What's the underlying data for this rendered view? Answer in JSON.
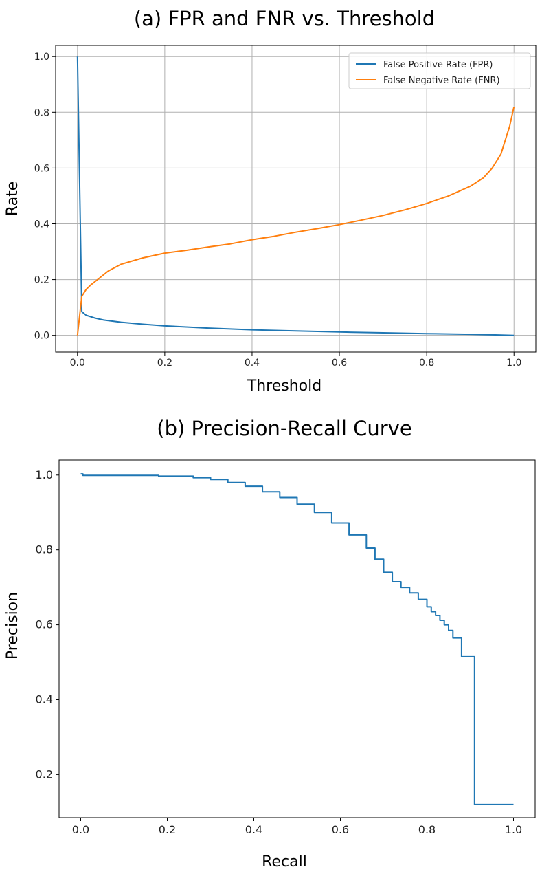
{
  "chart_data": [
    {
      "type": "line",
      "title": "(a) FPR and FNR vs. Threshold",
      "xlabel": "Threshold",
      "ylabel": "Rate",
      "xlim": [
        -0.05,
        1.05
      ],
      "ylim": [
        -0.06,
        1.04
      ],
      "xticks": [
        0.0,
        0.2,
        0.4,
        0.6,
        0.8,
        1.0
      ],
      "xtick_labels": [
        "0.0",
        "0.2",
        "0.4",
        "0.6",
        "0.8",
        "1.0"
      ],
      "yticks": [
        0.0,
        0.2,
        0.4,
        0.6,
        0.8,
        1.0
      ],
      "ytick_labels": [
        "0.0",
        "0.2",
        "0.4",
        "0.6",
        "0.8",
        "1.0"
      ],
      "grid": true,
      "legend_position": "top-right",
      "series": [
        {
          "name": "False Positive Rate (FPR)",
          "color": "#1f77b4",
          "x": [
            0.0,
            0.01,
            0.02,
            0.04,
            0.06,
            0.1,
            0.15,
            0.2,
            0.3,
            0.4,
            0.5,
            0.6,
            0.7,
            0.8,
            0.9,
            0.95,
            1.0
          ],
          "y": [
            1.0,
            0.085,
            0.072,
            0.062,
            0.055,
            0.047,
            0.04,
            0.034,
            0.026,
            0.02,
            0.016,
            0.012,
            0.009,
            0.006,
            0.004,
            0.002,
            0.0
          ]
        },
        {
          "name": "False Negative Rate (FNR)",
          "color": "#ff7f0e",
          "x": [
            0.0,
            0.005,
            0.01,
            0.02,
            0.03,
            0.05,
            0.07,
            0.1,
            0.15,
            0.2,
            0.25,
            0.3,
            0.35,
            0.4,
            0.45,
            0.5,
            0.55,
            0.6,
            0.65,
            0.7,
            0.75,
            0.8,
            0.85,
            0.9,
            0.93,
            0.95,
            0.97,
            0.98,
            0.99,
            1.0
          ],
          "y": [
            0.0,
            0.07,
            0.14,
            0.165,
            0.18,
            0.205,
            0.23,
            0.255,
            0.278,
            0.295,
            0.305,
            0.317,
            0.328,
            0.343,
            0.355,
            0.37,
            0.383,
            0.397,
            0.413,
            0.43,
            0.45,
            0.473,
            0.5,
            0.535,
            0.565,
            0.6,
            0.65,
            0.7,
            0.75,
            0.82
          ]
        }
      ]
    },
    {
      "type": "line",
      "title": "(b) Precision-Recall Curve",
      "xlabel": "Recall",
      "ylabel": "Precision",
      "xlim": [
        -0.05,
        1.05
      ],
      "ylim": [
        0.085,
        1.04
      ],
      "xticks": [
        0.0,
        0.2,
        0.4,
        0.6,
        0.8,
        1.0
      ],
      "xtick_labels": [
        "0.0",
        "0.2",
        "0.4",
        "0.6",
        "0.8",
        "1.0"
      ],
      "yticks": [
        0.2,
        0.4,
        0.6,
        0.8,
        1.0
      ],
      "ytick_labels": [
        "0.2",
        "0.4",
        "0.6",
        "0.8",
        "1.0"
      ],
      "grid": false,
      "series": [
        {
          "name": "Precision-Recall",
          "color": "#1f77b4",
          "step": true,
          "x": [
            0.0,
            0.005,
            0.18,
            0.26,
            0.3,
            0.34,
            0.38,
            0.42,
            0.46,
            0.5,
            0.54,
            0.58,
            0.62,
            0.66,
            0.68,
            0.7,
            0.72,
            0.74,
            0.76,
            0.78,
            0.8,
            0.81,
            0.82,
            0.83,
            0.84,
            0.85,
            0.86,
            0.875,
            0.88,
            0.905,
            0.91,
            1.0
          ],
          "y": [
            1.003,
            0.999,
            0.997,
            0.993,
            0.988,
            0.98,
            0.97,
            0.955,
            0.94,
            0.922,
            0.9,
            0.872,
            0.84,
            0.805,
            0.775,
            0.74,
            0.715,
            0.7,
            0.685,
            0.668,
            0.648,
            0.635,
            0.625,
            0.612,
            0.6,
            0.585,
            0.565,
            0.565,
            0.515,
            0.515,
            0.12,
            0.12
          ]
        }
      ]
    }
  ]
}
